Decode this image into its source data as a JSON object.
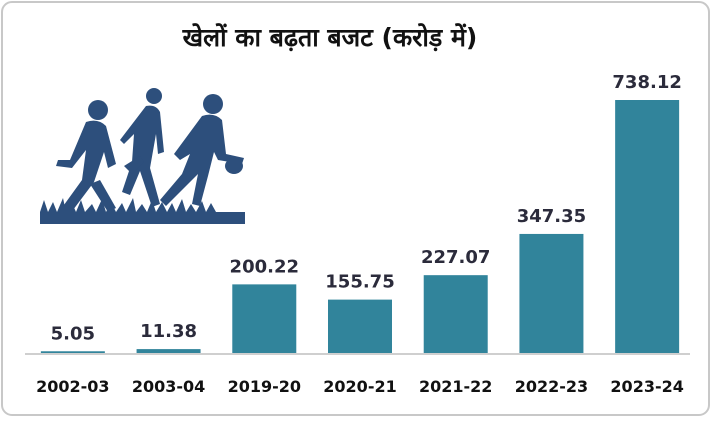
{
  "chart_data": {
    "type": "bar",
    "title": "खेलों का बढ़ता बजट (करोड़ में)",
    "categories": [
      "2002-03",
      "2003-04",
      "2019-20",
      "2020-21",
      "2021-22",
      "2022-23",
      "2023-24"
    ],
    "values": [
      5.05,
      11.38,
      200.22,
      155.75,
      227.07,
      347.35,
      738.12
    ],
    "color": "#31849b"
  }
}
